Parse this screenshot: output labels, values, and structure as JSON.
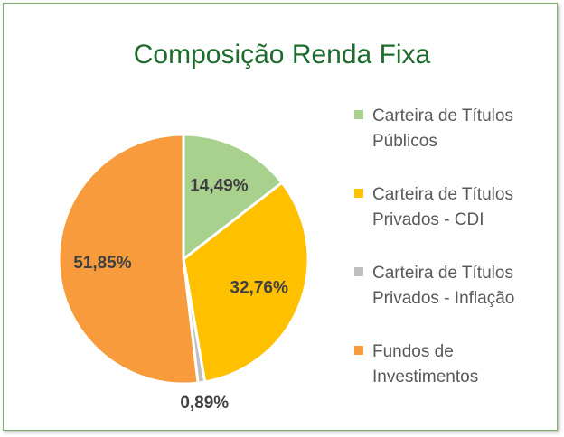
{
  "chart_data": {
    "type": "pie",
    "title": "Composição Renda Fixa",
    "categories": [
      "Carteira de Títulos Públicos",
      "Carteira de Títulos Privados - CDI",
      "Carteira de Títulos Privados - Inflação",
      "Fundos de Investimentos"
    ],
    "values": [
      14.49,
      32.76,
      0.89,
      51.85
    ],
    "value_labels": [
      "14,49%",
      "32,76%",
      "0,89%",
      "51,85%"
    ],
    "colors": [
      "#a9d18e",
      "#ffc000",
      "#bfbfbf",
      "#f79b3c"
    ],
    "legend": "right"
  }
}
